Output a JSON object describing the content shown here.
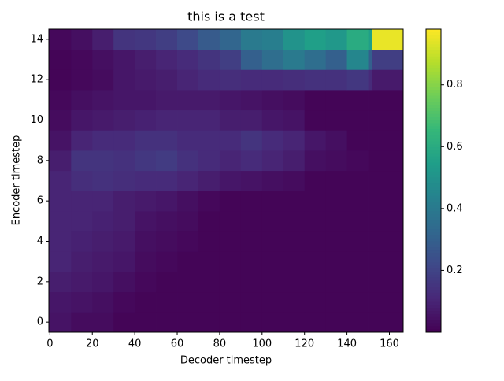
{
  "chart_data": {
    "type": "heatmap",
    "title": "this is a test",
    "x_label": "Decoder timestep",
    "y_label": "Encoder timestep",
    "colormap": "viridis",
    "xbins": [
      -0.5,
      10,
      20,
      30,
      40,
      50,
      60,
      70,
      80,
      90,
      100,
      110,
      120,
      130,
      140,
      150,
      152,
      166.5
    ],
    "y": [
      0,
      1,
      2,
      3,
      4,
      5,
      6,
      7,
      8,
      9,
      10,
      11,
      12,
      13,
      14
    ],
    "values": [
      [
        0.05,
        0.03,
        0.03,
        0.01,
        0.01,
        0.01,
        0.01,
        0.01,
        0.01,
        0.01,
        0.01,
        0.01,
        0.01,
        0.01,
        0.01,
        0.01,
        0.01
      ],
      [
        0.06,
        0.05,
        0.04,
        0.02,
        0.01,
        0.01,
        0.01,
        0.01,
        0.01,
        0.01,
        0.01,
        0.01,
        0.01,
        0.01,
        0.01,
        0.01,
        0.01
      ],
      [
        0.08,
        0.07,
        0.06,
        0.04,
        0.02,
        0.01,
        0.01,
        0.01,
        0.01,
        0.01,
        0.01,
        0.01,
        0.01,
        0.01,
        0.01,
        0.01,
        0.01
      ],
      [
        0.1,
        0.08,
        0.07,
        0.06,
        0.03,
        0.02,
        0.01,
        0.01,
        0.01,
        0.01,
        0.01,
        0.01,
        0.01,
        0.01,
        0.01,
        0.01,
        0.01
      ],
      [
        0.1,
        0.09,
        0.08,
        0.07,
        0.04,
        0.03,
        0.02,
        0.01,
        0.01,
        0.01,
        0.01,
        0.01,
        0.01,
        0.01,
        0.01,
        0.01,
        0.01
      ],
      [
        0.1,
        0.1,
        0.09,
        0.08,
        0.05,
        0.04,
        0.03,
        0.01,
        0.01,
        0.01,
        0.01,
        0.01,
        0.01,
        0.01,
        0.01,
        0.01,
        0.01
      ],
      [
        0.1,
        0.1,
        0.1,
        0.08,
        0.07,
        0.06,
        0.04,
        0.02,
        0.01,
        0.01,
        0.01,
        0.01,
        0.01,
        0.01,
        0.01,
        0.01,
        0.01
      ],
      [
        0.1,
        0.13,
        0.14,
        0.13,
        0.12,
        0.12,
        0.1,
        0.08,
        0.06,
        0.05,
        0.04,
        0.03,
        0.01,
        0.01,
        0.01,
        0.01,
        0.01
      ],
      [
        0.08,
        0.15,
        0.15,
        0.14,
        0.16,
        0.17,
        0.14,
        0.12,
        0.1,
        0.12,
        0.1,
        0.08,
        0.04,
        0.03,
        0.02,
        0.01,
        0.01
      ],
      [
        0.05,
        0.1,
        0.12,
        0.12,
        0.14,
        0.14,
        0.12,
        0.12,
        0.12,
        0.15,
        0.12,
        0.1,
        0.06,
        0.04,
        0.01,
        0.01,
        0.01
      ],
      [
        0.03,
        0.06,
        0.07,
        0.08,
        0.09,
        0.1,
        0.1,
        0.1,
        0.08,
        0.08,
        0.06,
        0.05,
        0.01,
        0.01,
        0.01,
        0.01,
        0.01
      ],
      [
        0.02,
        0.04,
        0.05,
        0.06,
        0.06,
        0.07,
        0.07,
        0.07,
        0.06,
        0.05,
        0.04,
        0.03,
        0.01,
        0.01,
        0.01,
        0.01,
        0.01
      ],
      [
        0.01,
        0.02,
        0.03,
        0.06,
        0.07,
        0.08,
        0.1,
        0.12,
        0.13,
        0.12,
        0.12,
        0.13,
        0.14,
        0.14,
        0.16,
        0.12,
        0.07
      ],
      [
        0.01,
        0.02,
        0.04,
        0.06,
        0.08,
        0.1,
        0.12,
        0.15,
        0.18,
        0.3,
        0.35,
        0.4,
        0.35,
        0.3,
        0.45,
        0.3,
        0.18
      ],
      [
        0.02,
        0.04,
        0.08,
        0.15,
        0.16,
        0.18,
        0.22,
        0.28,
        0.32,
        0.4,
        0.42,
        0.5,
        0.55,
        0.52,
        0.6,
        0.55,
        0.95
      ]
    ],
    "xlim": [
      -0.5,
      166.5
    ],
    "ylim": [
      -0.5,
      14.5
    ],
    "xticks": [
      0,
      20,
      40,
      60,
      80,
      100,
      120,
      140,
      160
    ],
    "yticks": [
      0,
      2,
      4,
      6,
      8,
      10,
      12,
      14
    ],
    "clim": [
      0,
      0.98
    ],
    "cticks": [
      0.2,
      0.4,
      0.6,
      0.8
    ]
  }
}
